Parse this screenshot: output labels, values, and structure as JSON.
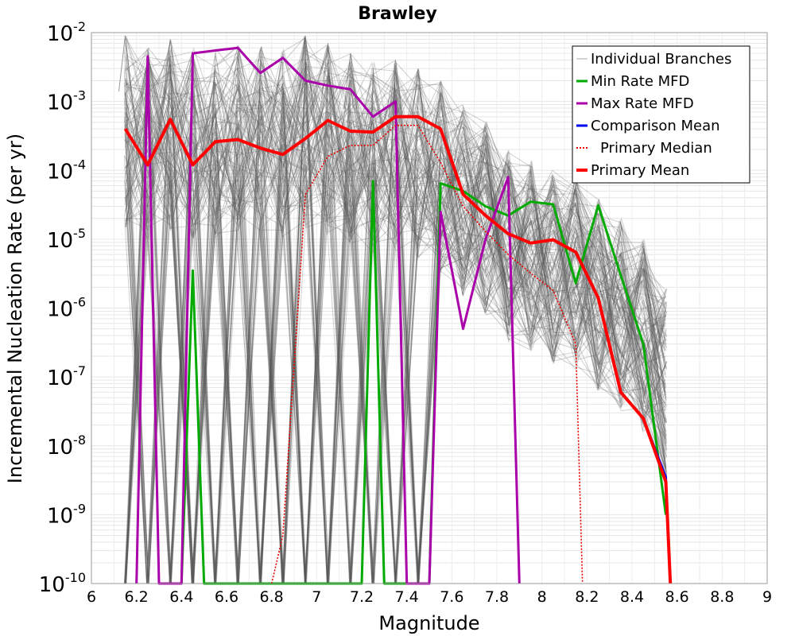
{
  "chart_data": {
    "type": "line",
    "title": "Brawley",
    "xlabel": "Magnitude",
    "ylabel": "Incremental Nucleation Rate (per yr)",
    "xlim": [
      6,
      9
    ],
    "ylim": [
      1e-10,
      0.01
    ],
    "y_scale": "log",
    "grid": true,
    "legend_placement": "top-right",
    "x_ticks": [
      "6",
      "6.2",
      "6.4",
      "6.6",
      "6.8",
      "7",
      "7.2",
      "7.4",
      "7.6",
      "7.8",
      "8",
      "8.2",
      "8.4",
      "8.6",
      "8.8",
      "9"
    ],
    "y_ticks": [
      {
        "base": "10",
        "exp": "-10",
        "value": 1e-10
      },
      {
        "base": "10",
        "exp": "-9",
        "value": 1e-09
      },
      {
        "base": "10",
        "exp": "-8",
        "value": 1e-08
      },
      {
        "base": "10",
        "exp": "-7",
        "value": 1e-07
      },
      {
        "base": "10",
        "exp": "-6",
        "value": 1e-06
      },
      {
        "base": "10",
        "exp": "-5",
        "value": 1e-05
      },
      {
        "base": "10",
        "exp": "-4",
        "value": 0.0001
      },
      {
        "base": "10",
        "exp": "-3",
        "value": 0.001
      },
      {
        "base": "10",
        "exp": "-2",
        "value": 0.01
      }
    ],
    "series": [
      {
        "name": "Individual Branches",
        "color": "#555555",
        "style": "thin",
        "x": [
          6.15,
          6.25,
          6.35,
          6.45,
          6.55,
          6.65,
          6.75,
          6.85,
          6.95,
          7.05,
          7.15,
          7.25,
          7.35,
          7.45,
          7.55,
          7.65,
          7.75,
          7.85,
          7.95,
          8.05,
          8.15,
          8.25,
          8.35,
          8.45,
          8.55
        ],
        "y": [
          0.009,
          0.006,
          0.008,
          0.006,
          0.006,
          0.007,
          0.007,
          0.006,
          0.009,
          0.007,
          0.005,
          0.004,
          0.004,
          0.003,
          0.002,
          0.0009,
          0.0005,
          0.0002,
          0.00015,
          0.0001,
          8e-05,
          4e-05,
          2e-05,
          1e-05,
          2e-06
        ]
      },
      {
        "name": "Min Rate MFD",
        "color": "#00aa00",
        "style": "solid",
        "x": [
          6.4,
          6.45,
          6.5,
          7.2,
          7.25,
          7.3,
          7.5,
          7.55,
          7.65,
          7.75,
          7.85,
          7.95,
          8.05,
          8.15,
          8.25,
          8.35,
          8.45,
          8.55
        ],
        "y": [
          1e-10,
          3.5e-06,
          1e-10,
          1e-10,
          7e-05,
          1e-10,
          1e-10,
          6.5e-05,
          5e-05,
          3e-05,
          2.2e-05,
          3.5e-05,
          3.2e-05,
          2.3e-06,
          3.1e-05,
          3e-06,
          3e-07,
          1e-09
        ]
      },
      {
        "name": "Max Rate MFD",
        "color": "#aa00aa",
        "style": "solid",
        "x": [
          6.2,
          6.25,
          6.3,
          6.4,
          6.45,
          6.55,
          6.65,
          6.75,
          6.85,
          6.95,
          7.05,
          7.15,
          7.25,
          7.35,
          7.4,
          7.5,
          7.55,
          7.65,
          7.75,
          7.85,
          7.9
        ],
        "y": [
          1e-10,
          0.0045,
          1e-10,
          1e-10,
          0.005,
          0.0055,
          0.006,
          0.0026,
          0.0043,
          0.002,
          0.0017,
          0.0015,
          0.0006,
          0.001,
          1e-10,
          1e-10,
          2.5e-05,
          5e-07,
          1e-05,
          8e-05,
          1e-10
        ]
      },
      {
        "name": "Comparison Mean",
        "color": "#0000ee",
        "style": "solid",
        "x": [
          8.35,
          8.45,
          8.55,
          8.57
        ],
        "y": [
          6e-08,
          2.5e-08,
          3.5e-09,
          1e-10
        ]
      },
      {
        "name": "Primary Median",
        "color": "#ee0000",
        "style": "dotted",
        "x": [
          6.8,
          6.85,
          6.95,
          7.05,
          7.15,
          7.25,
          7.35,
          7.45,
          7.55,
          7.65,
          7.75,
          7.85,
          7.95,
          8.05,
          8.15,
          8.18
        ],
        "y": [
          1e-10,
          5e-10,
          4.5e-05,
          0.00016,
          0.00023,
          0.00023,
          0.00045,
          0.00045,
          0.00013,
          3e-05,
          1.3e-05,
          6e-06,
          3.2e-06,
          1.8e-06,
          3e-07,
          1e-10
        ]
      },
      {
        "name": "Primary Mean",
        "color": "#ff0000",
        "style": "thick",
        "x": [
          6.15,
          6.25,
          6.35,
          6.45,
          6.55,
          6.65,
          6.75,
          6.85,
          6.95,
          7.05,
          7.15,
          7.25,
          7.35,
          7.45,
          7.55,
          7.65,
          7.75,
          7.85,
          7.95,
          8.05,
          8.15,
          8.25,
          8.35,
          8.45,
          8.55,
          8.57
        ],
        "y": [
          0.0004,
          0.00012,
          0.00055,
          0.00012,
          0.00026,
          0.00028,
          0.00021,
          0.00017,
          0.00029,
          0.00053,
          0.00037,
          0.00036,
          0.0006,
          0.0006,
          0.0004,
          4.5e-05,
          2.2e-05,
          1.2e-05,
          8.8e-06,
          9.8e-06,
          6.5e-06,
          1.4e-06,
          6e-08,
          2.5e-08,
          3e-09,
          1e-10
        ]
      }
    ],
    "legend": [
      {
        "label": "Individual Branches",
        "color": "#aaaaaa",
        "style": "thin"
      },
      {
        "label": "Min Rate MFD",
        "color": "#00aa00",
        "style": "solid"
      },
      {
        "label": "Max Rate MFD",
        "color": "#aa00aa",
        "style": "solid"
      },
      {
        "label": "Comparison Mean",
        "color": "#0000ee",
        "style": "solid"
      },
      {
        "label": "Primary Median",
        "color": "#ee0000",
        "style": "dotted"
      },
      {
        "label": "Primary Mean",
        "color": "#ff0000",
        "style": "thick"
      }
    ]
  }
}
